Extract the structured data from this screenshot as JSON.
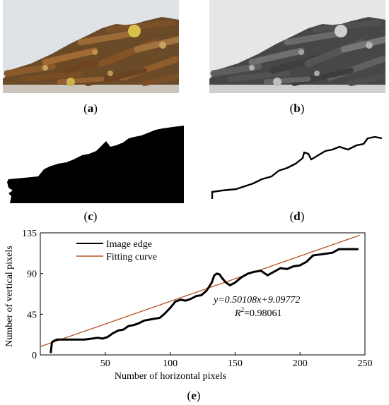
{
  "captions": {
    "a": {
      "open": "(",
      "letter": "a",
      "close": ")"
    },
    "b": {
      "open": "(",
      "letter": "b",
      "close": ")"
    },
    "c": {
      "open": "(",
      "letter": "c",
      "close": ")"
    },
    "d": {
      "open": "(",
      "letter": "d",
      "close": ")"
    },
    "e": {
      "open": "(",
      "letter": "e",
      "close": ")"
    }
  },
  "colors": {
    "edge": "#000000",
    "fit": "#b5531f",
    "photo_bg": "#dfe3e7",
    "table": "#c9c2b8"
  },
  "legend": {
    "edge": "Image edge",
    "fit": "Fitting curve"
  },
  "equation": {
    "line1": "y=0.50108x+9.09772",
    "r2_prefix": "R",
    "r2_sup": "2",
    "r2_value": "=0.98061"
  },
  "chart_data": {
    "type": "line",
    "xlabel": "Number of horizontal pixels",
    "ylabel": "Number of vertical pixels",
    "xlim": [
      0,
      250
    ],
    "ylim": [
      0,
      135
    ],
    "xticks": [
      50,
      100,
      150,
      200,
      250
    ],
    "yticks": [
      0,
      45,
      90,
      135
    ],
    "series": [
      {
        "name": "Image edge",
        "x": [
          8,
          9,
          11,
          13,
          17,
          22,
          28,
          34,
          40,
          44,
          48,
          52,
          56,
          60,
          64,
          68,
          72,
          76,
          80,
          84,
          88,
          92,
          96,
          100,
          104,
          108,
          112,
          116,
          120,
          124,
          128,
          132,
          134,
          136,
          138,
          140,
          143,
          146,
          150,
          155,
          160,
          165,
          170,
          175,
          180,
          185,
          190,
          195,
          200,
          205,
          210,
          215,
          220,
          225,
          230,
          235,
          240,
          245
        ],
        "y": [
          2,
          14,
          16,
          17,
          17,
          17,
          17,
          17,
          18,
          19,
          18,
          20,
          24,
          27,
          28,
          32,
          33,
          35,
          38,
          39,
          40,
          41,
          46,
          52,
          59,
          61,
          60,
          62,
          65,
          66,
          71,
          80,
          88,
          90,
          89,
          85,
          80,
          77,
          80,
          86,
          90,
          92,
          93,
          88,
          92,
          96,
          95,
          98,
          99,
          103,
          110,
          111,
          112,
          113,
          117,
          117,
          117,
          117
        ]
      },
      {
        "name": "Fitting curve",
        "x": [
          0,
          246
        ],
        "y": [
          9.09772,
          132.36
        ]
      }
    ]
  }
}
